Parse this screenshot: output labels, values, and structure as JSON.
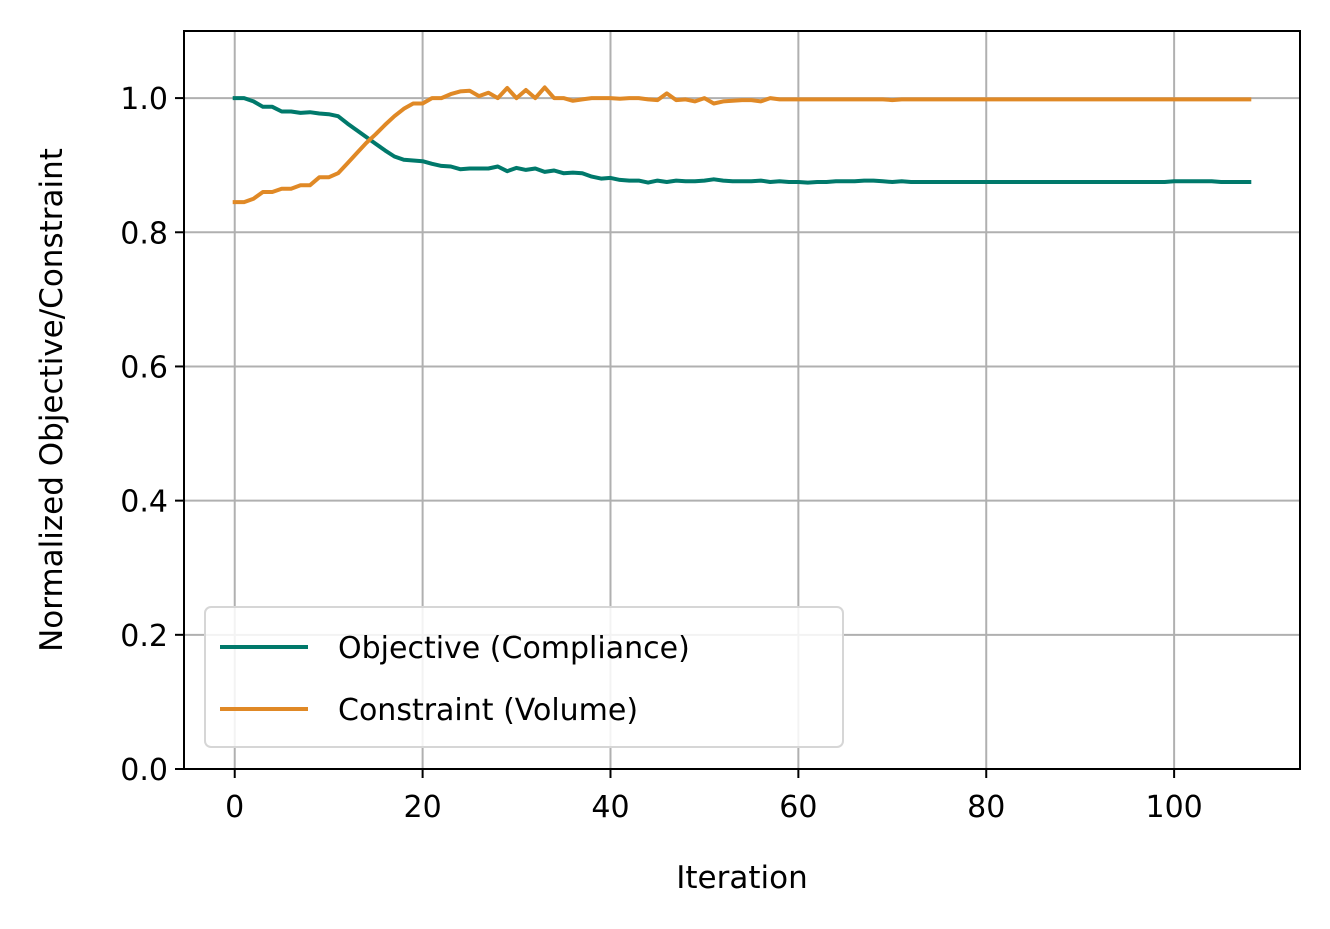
{
  "chart_data": {
    "type": "line",
    "xlabel": "Iteration",
    "ylabel": "Normalized Objective/Constraint",
    "xlim": [
      -5.4,
      113.4
    ],
    "ylim": [
      0.0,
      1.1
    ],
    "xticks": [
      0,
      20,
      40,
      60,
      80,
      100
    ],
    "xtick_labels": [
      "0",
      "20",
      "40",
      "60",
      "80",
      "100"
    ],
    "yticks": [
      0.0,
      0.2,
      0.4,
      0.6,
      0.8,
      1.0
    ],
    "ytick_labels": [
      "0.0",
      "0.2",
      "0.4",
      "0.6",
      "0.8",
      "1.0"
    ],
    "grid": true,
    "legend_position": "lower-left",
    "series": [
      {
        "name": "Objective (Compliance)",
        "color": "#00796b",
        "x": [
          0,
          1,
          2,
          3,
          4,
          5,
          6,
          7,
          8,
          9,
          10,
          11,
          12,
          13,
          14,
          15,
          16,
          17,
          18,
          19,
          20,
          21,
          22,
          23,
          24,
          25,
          26,
          27,
          28,
          29,
          30,
          31,
          32,
          33,
          34,
          35,
          36,
          37,
          38,
          39,
          40,
          41,
          42,
          43,
          44,
          45,
          46,
          47,
          48,
          49,
          50,
          51,
          52,
          53,
          54,
          55,
          56,
          57,
          58,
          59,
          60,
          61,
          62,
          63,
          64,
          65,
          66,
          67,
          68,
          69,
          70,
          71,
          72,
          73,
          74,
          75,
          76,
          77,
          78,
          79,
          80,
          81,
          82,
          83,
          84,
          85,
          86,
          87,
          88,
          89,
          90,
          91,
          92,
          93,
          94,
          95,
          96,
          97,
          98,
          99,
          100,
          101,
          102,
          103,
          104,
          105,
          106,
          107,
          108
        ],
        "y": [
          1.0,
          1.0,
          0.995,
          0.987,
          0.987,
          0.98,
          0.98,
          0.978,
          0.979,
          0.977,
          0.976,
          0.973,
          0.962,
          0.952,
          0.942,
          0.932,
          0.922,
          0.913,
          0.908,
          0.907,
          0.906,
          0.902,
          0.899,
          0.898,
          0.894,
          0.895,
          0.895,
          0.895,
          0.898,
          0.891,
          0.896,
          0.893,
          0.895,
          0.89,
          0.892,
          0.888,
          0.889,
          0.888,
          0.883,
          0.88,
          0.881,
          0.878,
          0.877,
          0.877,
          0.874,
          0.877,
          0.875,
          0.877,
          0.876,
          0.876,
          0.877,
          0.879,
          0.877,
          0.876,
          0.876,
          0.876,
          0.877,
          0.875,
          0.876,
          0.875,
          0.875,
          0.874,
          0.875,
          0.875,
          0.876,
          0.876,
          0.876,
          0.877,
          0.877,
          0.876,
          0.875,
          0.876,
          0.875,
          0.875,
          0.875,
          0.875,
          0.875,
          0.875,
          0.875,
          0.875,
          0.875,
          0.875,
          0.875,
          0.875,
          0.875,
          0.875,
          0.875,
          0.875,
          0.875,
          0.875,
          0.875,
          0.875,
          0.875,
          0.875,
          0.875,
          0.875,
          0.875,
          0.875,
          0.875,
          0.875,
          0.876,
          0.876,
          0.876,
          0.876,
          0.876,
          0.875,
          0.875,
          0.875,
          0.875
        ]
      },
      {
        "name": "Constraint (Volume)",
        "color": "#e08926",
        "x": [
          0,
          1,
          2,
          3,
          4,
          5,
          6,
          7,
          8,
          9,
          10,
          11,
          12,
          13,
          14,
          15,
          16,
          17,
          18,
          19,
          20,
          21,
          22,
          23,
          24,
          25,
          26,
          27,
          28,
          29,
          30,
          31,
          32,
          33,
          34,
          35,
          36,
          37,
          38,
          39,
          40,
          41,
          42,
          43,
          44,
          45,
          46,
          47,
          48,
          49,
          50,
          51,
          52,
          53,
          54,
          55,
          56,
          57,
          58,
          59,
          60,
          61,
          62,
          63,
          64,
          65,
          66,
          67,
          68,
          69,
          70,
          71,
          72,
          73,
          74,
          75,
          76,
          77,
          78,
          79,
          80,
          81,
          82,
          83,
          84,
          85,
          86,
          87,
          88,
          89,
          90,
          91,
          92,
          93,
          94,
          95,
          96,
          97,
          98,
          99,
          100,
          101,
          102,
          103,
          104,
          105,
          106,
          107,
          108
        ],
        "y": [
          0.845,
          0.845,
          0.85,
          0.86,
          0.86,
          0.865,
          0.865,
          0.87,
          0.87,
          0.882,
          0.882,
          0.888,
          0.903,
          0.918,
          0.933,
          0.946,
          0.96,
          0.973,
          0.984,
          0.992,
          0.992,
          1.0,
          1.0,
          1.006,
          1.01,
          1.011,
          1.003,
          1.008,
          1.0,
          1.015,
          1.0,
          1.012,
          1.0,
          1.016,
          1.0,
          1.0,
          0.996,
          0.998,
          1.0,
          1.0,
          1.0,
          0.999,
          1.0,
          1.0,
          0.998,
          0.997,
          1.007,
          0.997,
          0.998,
          0.995,
          1.0,
          0.992,
          0.995,
          0.996,
          0.997,
          0.997,
          0.995,
          1.0,
          0.998,
          0.998,
          0.998,
          0.998,
          0.998,
          0.998,
          0.998,
          0.998,
          0.998,
          0.998,
          0.998,
          0.998,
          0.997,
          0.998,
          0.998,
          0.998,
          0.998,
          0.998,
          0.998,
          0.998,
          0.998,
          0.998,
          0.998,
          0.998,
          0.998,
          0.998,
          0.998,
          0.998,
          0.998,
          0.998,
          0.998,
          0.998,
          0.998,
          0.998,
          0.998,
          0.998,
          0.998,
          0.998,
          0.998,
          0.998,
          0.998,
          0.998,
          0.998,
          0.998,
          0.998,
          0.998,
          0.998,
          0.998,
          0.998,
          0.998,
          0.998
        ]
      }
    ]
  }
}
